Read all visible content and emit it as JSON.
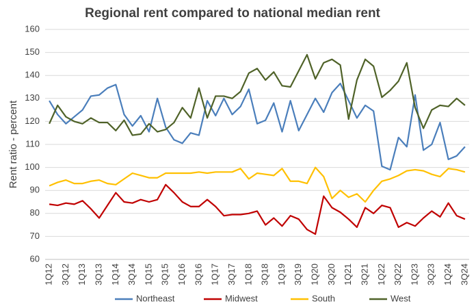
{
  "chart_data": {
    "type": "line",
    "title": "Regional rent compared to national median rent",
    "y_label": "Rent ratio - percent",
    "categories": [
      "1Q12",
      null,
      "3Q12",
      null,
      "1Q13",
      null,
      "3Q13",
      null,
      "1Q14",
      null,
      "3Q14",
      null,
      "1Q15",
      null,
      "3Q15",
      null,
      "1Q16",
      null,
      "3Q16",
      null,
      "1Q17",
      null,
      "3Q17",
      null,
      "1Q18",
      null,
      "3Q18",
      null,
      "1Q19",
      null,
      "3Q19",
      null,
      "1Q20",
      null,
      "3Q20",
      null,
      "1Q21",
      null,
      "3Q21",
      null,
      "1Q22",
      null,
      "3Q22",
      null,
      "1Q23",
      null,
      "3Q23",
      null,
      "1Q24",
      null,
      "3Q24"
    ],
    "series": [
      {
        "name": "Northeast",
        "color": "#4a7ebb",
        "values": [
          129,
          123,
          119,
          122,
          125,
          131,
          131.5,
          134.5,
          136,
          123,
          118,
          122.5,
          115.5,
          130,
          117.5,
          112,
          110.5,
          115,
          114,
          129,
          122.5,
          130,
          123,
          126.5,
          134,
          119,
          120.5,
          128,
          115.5,
          129,
          116,
          123,
          130,
          124,
          132.5,
          136.5,
          129,
          121.5,
          127,
          124.5,
          100.5,
          99,
          113,
          109,
          131.5,
          107.5,
          110,
          119.5,
          103.5,
          105,
          109
        ]
      },
      {
        "name": "Midwest",
        "color": "#c00000",
        "values": [
          84,
          83.5,
          84.5,
          84,
          85.5,
          82,
          78,
          83.5,
          89,
          85,
          84.5,
          86,
          85,
          86,
          92.5,
          89,
          85,
          83,
          83,
          86,
          83,
          79,
          79.5,
          79.5,
          80,
          81,
          75,
          78,
          74.5,
          79,
          77.5,
          73,
          71,
          87.5,
          82.5,
          80.5,
          77.5,
          74,
          82.5,
          80,
          83.5,
          82.5,
          74,
          76,
          74.5,
          78,
          81,
          78.5,
          84.5,
          79,
          77.5
        ]
      },
      {
        "name": "South",
        "color": "#ffc000",
        "values": [
          92,
          93.5,
          94.5,
          93,
          93,
          94,
          94.5,
          93,
          92.5,
          95,
          97.5,
          96.5,
          95.5,
          95.5,
          97.5,
          97.5,
          97.5,
          97.5,
          98,
          97.5,
          98,
          98,
          98,
          99.5,
          95,
          97.5,
          97,
          96.5,
          99.5,
          94,
          94,
          93,
          100,
          96,
          86.5,
          90,
          87,
          88.5,
          85,
          90,
          94,
          95,
          96.5,
          98.5,
          99,
          98.5,
          97,
          96,
          99.5,
          99,
          98
        ]
      },
      {
        "name": "West",
        "color": "#4f6228",
        "values": [
          119,
          127,
          122,
          120,
          119,
          121.5,
          119.5,
          119.5,
          116,
          120.5,
          114,
          114.5,
          119,
          115.5,
          116.5,
          119.5,
          126,
          121.5,
          134.5,
          121.5,
          131,
          131,
          130,
          133,
          141,
          143,
          138,
          141.5,
          135.5,
          135,
          142,
          149,
          138.5,
          145.5,
          147,
          144.5,
          121,
          138,
          147,
          144,
          130.5,
          133.5,
          137.5,
          145.5,
          126,
          117,
          125,
          127,
          126.5,
          130,
          127
        ]
      }
    ],
    "ylim": [
      60,
      160
    ],
    "yticks": [
      60,
      70,
      80,
      90,
      100,
      110,
      120,
      130,
      140,
      150,
      160
    ],
    "grid": true,
    "legend": "bottom"
  }
}
